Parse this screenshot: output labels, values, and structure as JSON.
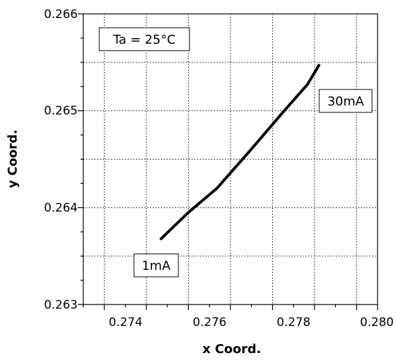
{
  "chart_data": {
    "type": "line",
    "xlabel": "x Coord.",
    "ylabel": "y Coord.",
    "xlim": [
      0.273,
      0.28
    ],
    "ylim": [
      0.263,
      0.266
    ],
    "xticks": [
      "0.274",
      "0.276",
      "0.278",
      "0.280"
    ],
    "yticks": [
      "0.263",
      "0.264",
      "0.265",
      "0.266"
    ],
    "grid": true,
    "series": [
      {
        "x": [
          0.27483,
          0.2755,
          0.27618,
          0.27695,
          0.27778,
          0.27833,
          0.27862
        ],
        "y": [
          0.26367,
          0.26395,
          0.2642,
          0.26458,
          0.265,
          0.26527,
          0.26548
        ]
      }
    ],
    "annotations": {
      "condition": "Ta = 25°C",
      "start_label": "1mA",
      "end_label": "30mA"
    }
  }
}
